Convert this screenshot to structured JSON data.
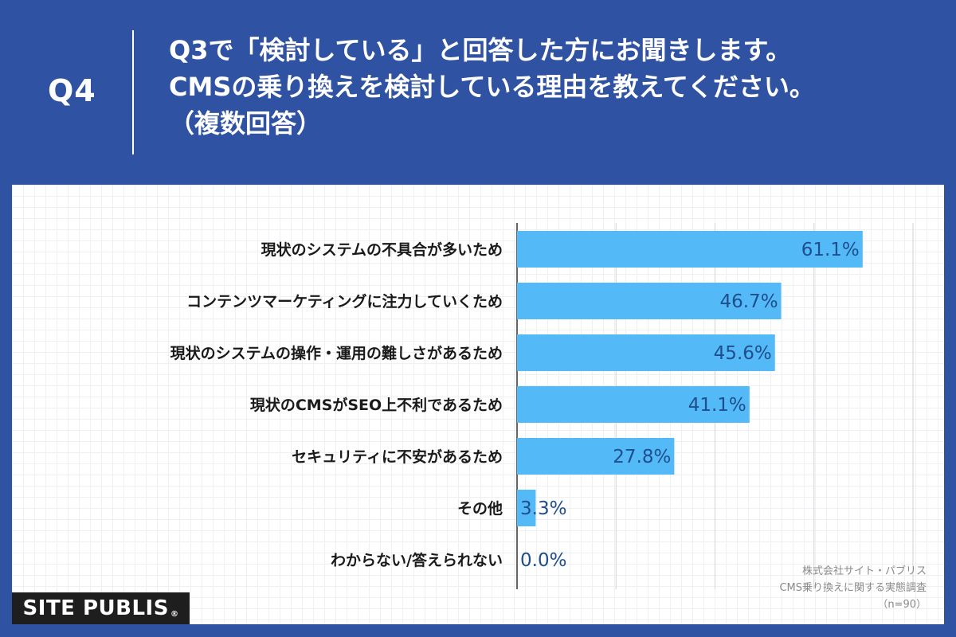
{
  "header": {
    "q_number": "Q4",
    "question_lines": [
      "Q3で「検討している」と回答した方にお聞きします。",
      "CMSの乗り換えを検討している理由を教えてください。",
      "（複数回答）"
    ]
  },
  "colors": {
    "background": "#2f52a2",
    "bar": "#54b9f7",
    "value_text": "#1f4e8c",
    "label_text": "#1a1a1a"
  },
  "chart_data": {
    "type": "bar",
    "orientation": "horizontal",
    "categories": [
      "現状のシステムの不具合が多いため",
      "コンテンツマーケティングに注力していくため",
      "現状のシステムの操作・運用の難しさがあるため",
      "現状のCMSがSEO上不利であるため",
      "セキュリティに不安があるため",
      "その他",
      "わからない/答えられない"
    ],
    "values": [
      61.1,
      46.7,
      45.6,
      41.1,
      27.8,
      3.3,
      0.0
    ],
    "value_labels": [
      "61.1%",
      "46.7%",
      "45.6%",
      "41.1%",
      "27.8%",
      "3.3%",
      "0.0%"
    ],
    "xlim": [
      0,
      70
    ],
    "grid": true
  },
  "source": {
    "lines": [
      "株式会社サイト・パブリス",
      "CMS乗り換えに関する実態調査",
      "（n=90）"
    ]
  },
  "logo": {
    "text": "SITE PUBLIS",
    "mark": "®"
  }
}
